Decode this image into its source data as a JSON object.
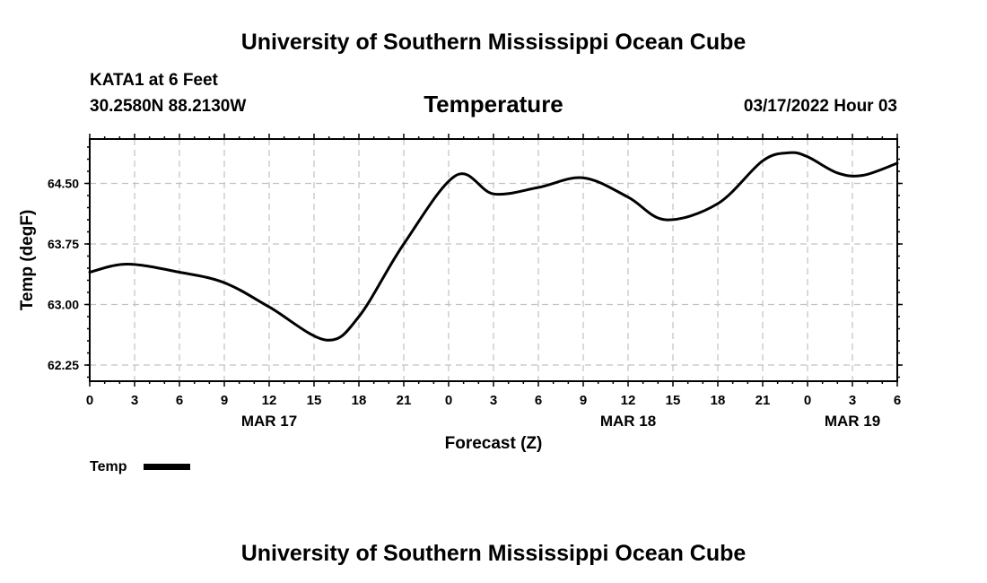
{
  "header": {
    "top_title": "University of Southern Mississippi Ocean Cube",
    "station": "KATA1 at 6 Feet",
    "location": "30.2580N  88.2130W",
    "issued": "03/17/2022 Hour 03"
  },
  "footer": {
    "bottom_title": "University of Southern Mississippi Ocean Cube"
  },
  "chart_data": {
    "type": "line",
    "title": "Temperature",
    "xlabel": "Forecast (Z)",
    "ylabel": "Temp (degF)",
    "x_unit": "hours from 00Z MAR 17",
    "xlim": [
      0,
      54
    ],
    "ylim": [
      62.05,
      65.05
    ],
    "grid": true,
    "legend_position": "bottom-left",
    "x_tick_labels": [
      "0",
      "3",
      "6",
      "9",
      "12",
      "15",
      "18",
      "21",
      "0",
      "3",
      "6",
      "9",
      "12",
      "15",
      "18",
      "21",
      "0",
      "3",
      "6"
    ],
    "y_tick_labels": [
      "62.25",
      "63.00",
      "63.75",
      "64.50"
    ],
    "y_tick_values": [
      62.25,
      63.0,
      63.75,
      64.5
    ],
    "date_labels": [
      {
        "text": "MAR 17",
        "at_hour": 12
      },
      {
        "text": "MAR 18",
        "at_hour": 36
      },
      {
        "text": "MAR 19",
        "at_hour": 51
      }
    ],
    "series": [
      {
        "name": "Temp",
        "color": "#000000",
        "x": [
          0,
          2.5,
          6,
          9,
          12,
          15.8,
          18,
          21,
          24.5,
          27,
          30,
          33,
          36,
          38.5,
          42,
          45,
          46.8,
          48,
          50,
          51.7,
          54
        ],
        "y": [
          63.4,
          63.5,
          63.4,
          63.27,
          62.97,
          62.56,
          62.85,
          63.75,
          64.6,
          64.37,
          64.45,
          64.57,
          64.33,
          64.05,
          64.25,
          64.78,
          64.88,
          64.83,
          64.63,
          64.6,
          64.75
        ]
      }
    ]
  }
}
